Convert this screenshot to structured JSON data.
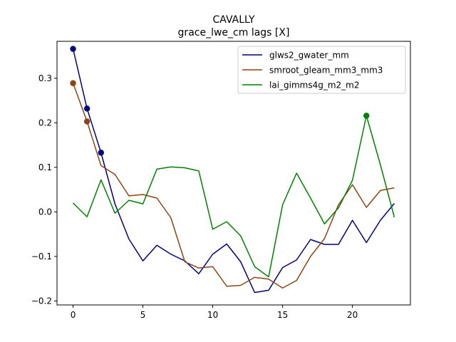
{
  "chart_data": {
    "type": "line",
    "title": "CAVALLY",
    "subtitle": "grace_lwe_cm lags [X]",
    "xlabel": "",
    "ylabel": "",
    "xlim": [
      -1.15,
      24.15
    ],
    "ylim": [
      -0.209,
      0.383
    ],
    "xticks": [
      0,
      5,
      10,
      15,
      20
    ],
    "yticks": [
      -0.2,
      -0.1,
      0.0,
      0.1,
      0.2,
      0.3
    ],
    "ytick_labels": [
      "−0.2",
      "−0.1",
      "0.0",
      "0.1",
      "0.2",
      "0.3"
    ],
    "grid": false,
    "legend_position": "top-right",
    "x": [
      0,
      1,
      2,
      3,
      4,
      5,
      6,
      7,
      8,
      9,
      10,
      11,
      12,
      13,
      14,
      15,
      16,
      17,
      18,
      19,
      20,
      21,
      22,
      23
    ],
    "series": [
      {
        "name": "glws2_gwater_mm",
        "color": "#00007f",
        "values": [
          0.366,
          0.232,
          0.133,
          0.018,
          -0.061,
          -0.11,
          -0.075,
          -0.095,
          -0.11,
          -0.139,
          -0.095,
          -0.072,
          -0.112,
          -0.181,
          -0.176,
          -0.125,
          -0.108,
          -0.062,
          -0.073,
          -0.073,
          -0.019,
          -0.069,
          -0.019,
          0.019
        ],
        "markers": [
          0,
          1,
          2
        ]
      },
      {
        "name": "smroot_gleam_mm3_mm3",
        "color": "#8b4513",
        "values": [
          0.289,
          0.203,
          0.104,
          0.084,
          0.036,
          0.039,
          0.031,
          -0.013,
          -0.112,
          -0.126,
          -0.123,
          -0.167,
          -0.165,
          -0.147,
          -0.151,
          -0.171,
          -0.154,
          -0.1,
          -0.06,
          0.016,
          0.061,
          0.01,
          0.048,
          0.054
        ],
        "markers": [
          0,
          1
        ]
      },
      {
        "name": "lai_gimms4g_m2_m2",
        "color": "#008000",
        "values": [
          0.02,
          -0.011,
          0.072,
          -0.003,
          0.026,
          0.018,
          0.096,
          0.101,
          0.099,
          0.092,
          -0.039,
          -0.022,
          -0.054,
          -0.123,
          -0.146,
          0.016,
          0.087,
          0.031,
          -0.027,
          0.009,
          0.071,
          0.216,
          0.106,
          -0.012
        ],
        "markers": [
          21
        ]
      }
    ]
  }
}
